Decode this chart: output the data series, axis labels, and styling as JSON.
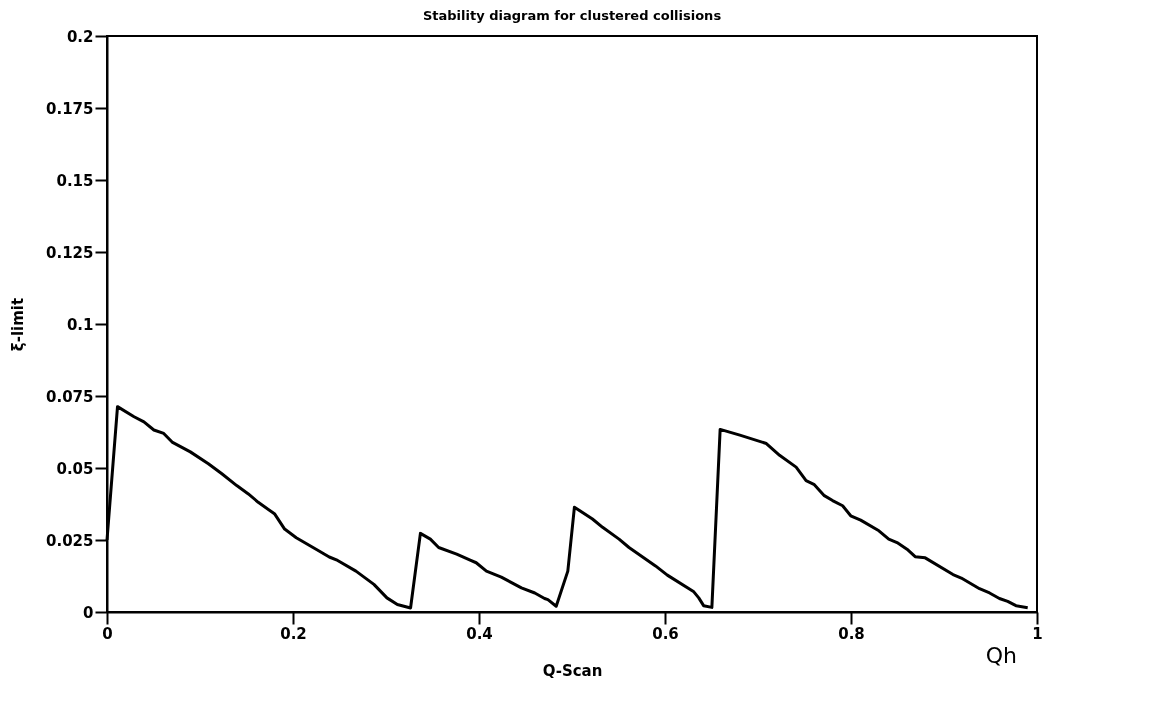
{
  "chart_data": {
    "type": "line",
    "title": "Stability diagram for clustered collisions",
    "xlabel": "Q-Scan",
    "ylabel": "ξ-limit",
    "annotations": [
      "Qh"
    ],
    "x": [
      0,
      0.0113,
      0.0291,
      0.0397,
      0.0504,
      0.061,
      0.07,
      0.0896,
      0.109,
      0.1235,
      0.1395,
      0.152,
      0.1626,
      0.1804,
      0.191,
      0.2035,
      0.2248,
      0.239,
      0.248,
      0.2677,
      0.287,
      0.301,
      0.3122,
      0.3264,
      0.337,
      0.3477,
      0.3566,
      0.376,
      0.3905,
      0.397,
      0.408,
      0.424,
      0.4456,
      0.46,
      0.4705,
      0.4741,
      0.483,
      0.4955,
      0.5026,
      0.522,
      0.5329,
      0.5506,
      0.5613,
      0.5898,
      0.6025,
      0.631,
      0.6363,
      0.6415,
      0.6504,
      0.6593,
      0.6805,
      0.709,
      0.7232,
      0.741,
      0.7517,
      0.7606,
      0.7713,
      0.7802,
      0.791,
      0.7997,
      0.8104,
      0.83,
      0.8406,
      0.8495,
      0.8602,
      0.869,
      0.8798,
      0.9097,
      0.9186,
      0.9382,
      0.949,
      0.9596,
      0.9685,
      0.9774,
      0.99
    ],
    "series": [
      {
        "color": "#000000",
        "values": [
          0.025,
          0.0713,
          0.0678,
          0.066,
          0.0632,
          0.062,
          0.059,
          0.0556,
          0.0515,
          0.048,
          0.0439,
          0.041,
          0.0381,
          0.034,
          0.0288,
          0.0258,
          0.0218,
          0.0191,
          0.0179,
          0.0142,
          0.0096,
          0.0049,
          0.0026,
          0.0014,
          0.0273,
          0.0253,
          0.0224,
          0.0201,
          0.018,
          0.0171,
          0.0142,
          0.0121,
          0.0084,
          0.0066,
          0.0047,
          0.0043,
          0.002,
          0.0142,
          0.0364,
          0.0323,
          0.0294,
          0.0253,
          0.0224,
          0.016,
          0.0128,
          0.007,
          0.0049,
          0.0022,
          0.0016,
          0.0634,
          0.0614,
          0.0585,
          0.0544,
          0.0503,
          0.0456,
          0.0442,
          0.0404,
          0.0387,
          0.0369,
          0.0334,
          0.0319,
          0.0282,
          0.0253,
          0.0241,
          0.0218,
          0.0192,
          0.0188,
          0.013,
          0.0118,
          0.0081,
          0.0066,
          0.0047,
          0.0037,
          0.0022,
          0.0015
        ]
      }
    ],
    "xlim": [
      0,
      1
    ],
    "xticks": [
      0,
      0.2,
      0.4,
      0.6,
      0.8,
      1
    ],
    "ylim": [
      0,
      0.2
    ],
    "yticks": [
      0,
      0.025,
      0.05,
      0.075,
      0.1,
      0.125,
      0.15,
      0.175,
      0.2
    ],
    "grid": false,
    "marker": "none",
    "line_style": "solid"
  }
}
